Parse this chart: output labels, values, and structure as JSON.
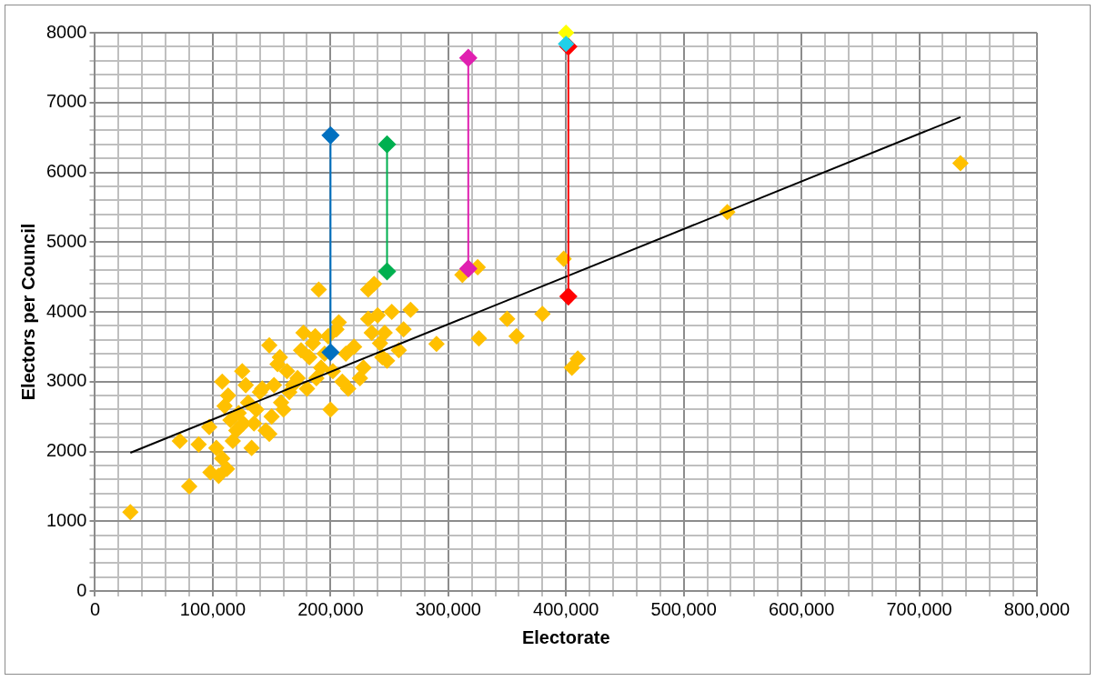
{
  "chart_data": {
    "type": "scatter",
    "xlabel": "Electorate",
    "ylabel": "Electors per Council",
    "marker": "diamond",
    "grid": true,
    "legend": false,
    "xlim": [
      0,
      800000
    ],
    "ylim": [
      0,
      8000
    ],
    "xticks": [
      {
        "value": 0,
        "label": "0"
      },
      {
        "value": 20000,
        "label": null
      },
      {
        "value": 40000,
        "label": null
      },
      {
        "value": 60000,
        "label": null
      },
      {
        "value": 80000,
        "label": null
      },
      {
        "value": 100000,
        "label": "100,000"
      },
      {
        "value": 120000,
        "label": null
      },
      {
        "value": 140000,
        "label": null
      },
      {
        "value": 160000,
        "label": null
      },
      {
        "value": 180000,
        "label": null
      },
      {
        "value": 200000,
        "label": "200,000"
      },
      {
        "value": 220000,
        "label": null
      },
      {
        "value": 240000,
        "label": null
      },
      {
        "value": 260000,
        "label": null
      },
      {
        "value": 280000,
        "label": null
      },
      {
        "value": 300000,
        "label": "300,000"
      },
      {
        "value": 320000,
        "label": null
      },
      {
        "value": 340000,
        "label": null
      },
      {
        "value": 360000,
        "label": null
      },
      {
        "value": 380000,
        "label": null
      },
      {
        "value": 400000,
        "label": "400,000"
      },
      {
        "value": 420000,
        "label": null
      },
      {
        "value": 440000,
        "label": null
      },
      {
        "value": 460000,
        "label": null
      },
      {
        "value": 480000,
        "label": null
      },
      {
        "value": 500000,
        "label": "500,000"
      },
      {
        "value": 520000,
        "label": null
      },
      {
        "value": 540000,
        "label": null
      },
      {
        "value": 560000,
        "label": null
      },
      {
        "value": 580000,
        "label": null
      },
      {
        "value": 600000,
        "label": "600,000"
      },
      {
        "value": 620000,
        "label": null
      },
      {
        "value": 640000,
        "label": null
      },
      {
        "value": 660000,
        "label": null
      },
      {
        "value": 680000,
        "label": null
      },
      {
        "value": 700000,
        "label": "700,000"
      },
      {
        "value": 720000,
        "label": null
      },
      {
        "value": 740000,
        "label": null
      },
      {
        "value": 760000,
        "label": null
      },
      {
        "value": 780000,
        "label": null
      },
      {
        "value": 800000,
        "label": "800,000"
      }
    ],
    "yticks": [
      0,
      {
        "value": 200,
        "label": null
      },
      {
        "value": 400,
        "label": null
      },
      {
        "value": 600,
        "label": null
      },
      {
        "value": 800,
        "label": null
      },
      1000,
      {
        "value": 1200,
        "label": null
      },
      {
        "value": 1400,
        "label": null
      },
      {
        "value": 1600,
        "label": null
      },
      {
        "value": 1800,
        "label": null
      },
      2000,
      {
        "value": 2200,
        "label": null
      },
      {
        "value": 2400,
        "label": null
      },
      {
        "value": 2600,
        "label": null
      },
      {
        "value": 2800,
        "label": null
      },
      3000,
      {
        "value": 3200,
        "label": null
      },
      {
        "value": 3400,
        "label": null
      },
      {
        "value": 3600,
        "label": null
      },
      {
        "value": 3800,
        "label": null
      },
      4000,
      {
        "value": 4200,
        "label": null
      },
      {
        "value": 4400,
        "label": null
      },
      {
        "value": 4600,
        "label": null
      },
      {
        "value": 4800,
        "label": null
      },
      5000,
      {
        "value": 5200,
        "label": null
      },
      {
        "value": 5400,
        "label": null
      },
      {
        "value": 5600,
        "label": null
      },
      {
        "value": 5800,
        "label": null
      },
      6000,
      {
        "value": 6200,
        "label": null
      },
      {
        "value": 6400,
        "label": null
      },
      {
        "value": 6600,
        "label": null
      },
      {
        "value": 6800,
        "label": null
      },
      7000,
      {
        "value": 7200,
        "label": null
      },
      {
        "value": 7400,
        "label": null
      },
      {
        "value": 7600,
        "label": null
      },
      {
        "value": 7800,
        "label": null
      },
      8000
    ],
    "series": [
      {
        "color": "#ffc000",
        "x": [
          30000,
          72000,
          80000,
          88000,
          97000,
          98000,
          103000,
          105000,
          108000,
          108000,
          110000,
          112000,
          113000,
          115000,
          117000,
          120000,
          122000,
          125000,
          126000,
          128000,
          130000,
          133000,
          135000,
          137000,
          140000,
          142000,
          145000,
          148000,
          148000,
          150000,
          152000,
          155000,
          157000,
          158000,
          160000,
          163000,
          165000,
          168000,
          172000,
          175000,
          177000,
          180000,
          182000,
          185000,
          187000,
          188000,
          190000,
          192000,
          195000,
          198000,
          200000,
          202000,
          205000,
          207000,
          210000,
          213000,
          215000,
          220000,
          225000,
          228000,
          232000,
          232000,
          235000,
          237000,
          240000,
          242000,
          244000,
          246000,
          248000,
          252000,
          258000,
          262000,
          268000,
          290000,
          312000,
          325000,
          326000,
          350000,
          358000,
          380000,
          398000,
          405000,
          410000,
          537000,
          735000
        ],
        "values": [
          1130,
          2150,
          1500,
          2100,
          2350,
          1700,
          2050,
          1650,
          3000,
          1900,
          2650,
          1750,
          2800,
          2450,
          2150,
          2300,
          2550,
          3150,
          2400,
          2950,
          2700,
          2050,
          2400,
          2600,
          2850,
          2900,
          2300,
          3520,
          2250,
          2500,
          2950,
          3250,
          3350,
          2700,
          2600,
          3150,
          2850,
          2950,
          3050,
          3450,
          3700,
          2900,
          3350,
          3550,
          3650,
          3050,
          4320,
          3200,
          3400,
          3650,
          2600,
          3150,
          3750,
          3850,
          3000,
          3400,
          2900,
          3500,
          3050,
          3200,
          3900,
          4320,
          3700,
          4400,
          3950,
          3550,
          3350,
          3700,
          3300,
          4000,
          3450,
          3750,
          4030,
          3540,
          4530,
          4640,
          3620,
          3900,
          3650,
          3970,
          4760,
          3200,
          3330,
          5430,
          6130
        ]
      },
      {
        "type": "line",
        "marker": "none",
        "color": "#000000",
        "x": [
          30000,
          735000
        ],
        "values": [
          1980,
          6790
        ]
      },
      {
        "type": "line",
        "color": "#0070c0",
        "x": [
          200000,
          200000
        ],
        "values": [
          6530,
          3420
        ]
      },
      {
        "type": "line",
        "color": "#00b050",
        "x": [
          248000,
          248000
        ],
        "values": [
          6400,
          4580
        ]
      },
      {
        "type": "line",
        "color": "#e020b0",
        "x": [
          317000,
          317000
        ],
        "values": [
          7640,
          4620
        ]
      },
      {
        "type": "line",
        "color": "#ff0000",
        "x": [
          402000,
          402000
        ],
        "values": [
          7800,
          4220
        ]
      },
      {
        "type": "scatter",
        "color": "#ffff00",
        "x": [
          400000
        ],
        "values": [
          8000
        ]
      },
      {
        "type": "scatter",
        "color": "#20d0e8",
        "x": [
          400000
        ],
        "values": [
          7840
        ]
      }
    ]
  }
}
